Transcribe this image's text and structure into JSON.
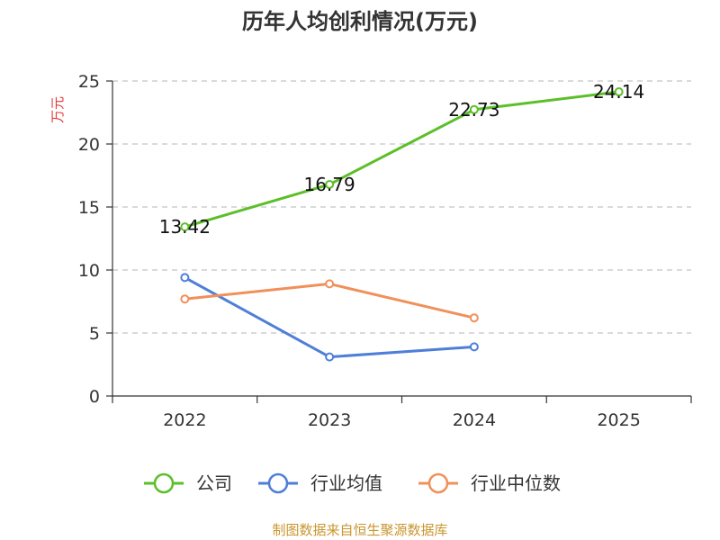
{
  "chart_data": {
    "type": "line",
    "title": "历年人均创利情况(万元)",
    "ylabel": "万元",
    "xlabel": "",
    "categories": [
      "2022",
      "2023",
      "2024",
      "2025"
    ],
    "ylim": [
      0,
      25
    ],
    "yticks": [
      0,
      5,
      10,
      15,
      20,
      25
    ],
    "grid": true,
    "legend_position": "bottom",
    "series": [
      {
        "name": "公司",
        "values": [
          13.42,
          16.79,
          22.73,
          24.14
        ],
        "color": "#5cbf2a",
        "show_labels": true,
        "labels": [
          "13.42",
          "16.79",
          "22.73",
          "24.14"
        ]
      },
      {
        "name": "行业均值",
        "values": [
          9.4,
          3.1,
          3.9,
          null
        ],
        "color": "#4e7fd8",
        "show_labels": false
      },
      {
        "name": "行业中位数",
        "values": [
          7.7,
          8.9,
          6.2,
          null
        ],
        "color": "#f0905a",
        "show_labels": false
      }
    ],
    "source": "制图数据来自恒生聚源数据库"
  }
}
